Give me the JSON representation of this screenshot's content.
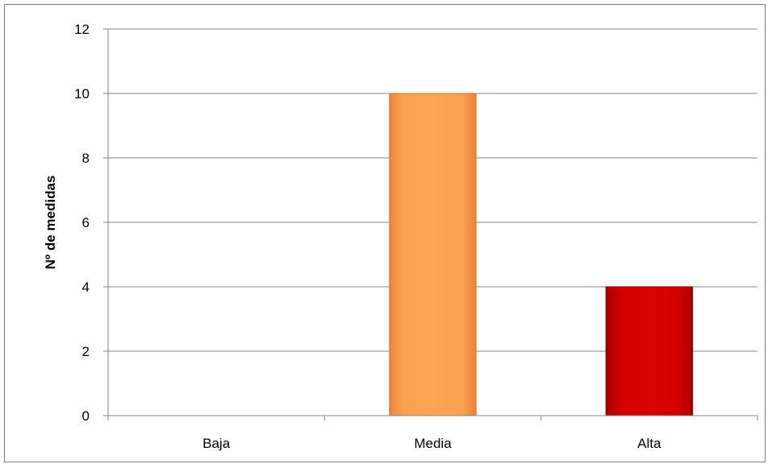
{
  "chart_data": {
    "type": "bar",
    "categories": [
      "Baja",
      "Media",
      "Alta"
    ],
    "values": [
      0,
      10,
      4
    ],
    "ylabel": "Nº de medidas",
    "xlabel": "",
    "ylim": [
      0,
      12
    ],
    "yticks": [
      0,
      2,
      4,
      6,
      8,
      10,
      12
    ],
    "grid": true,
    "legend": "none",
    "colors": [
      "#d9d9d9",
      "#f79646",
      "#c00000"
    ]
  }
}
